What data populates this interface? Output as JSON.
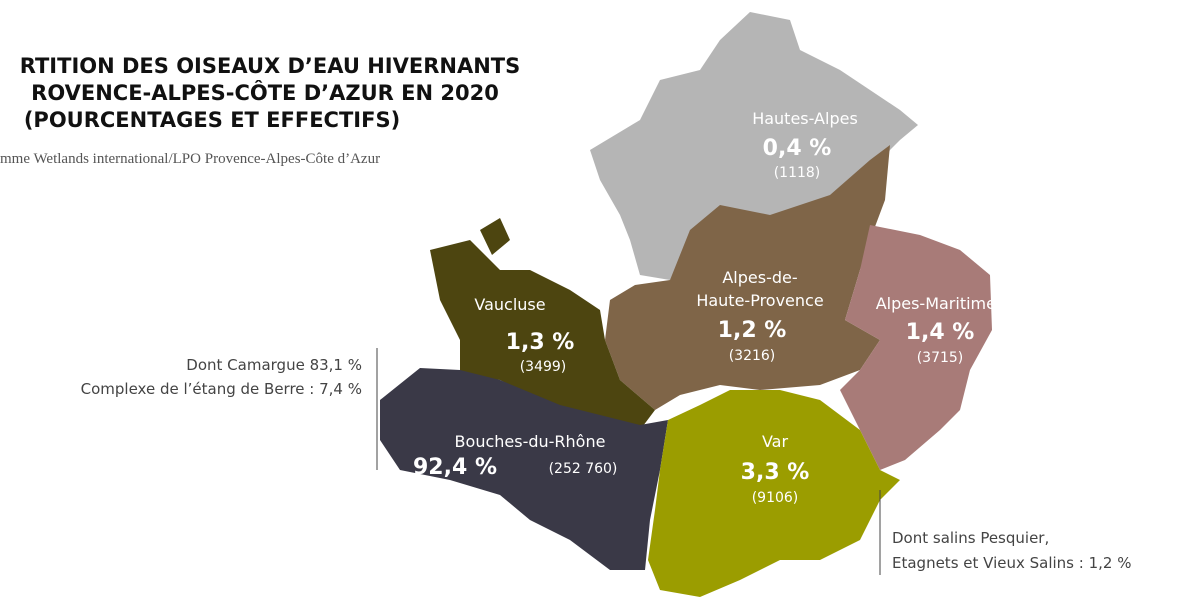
{
  "title": [
    "RTITION DES OISEAUX D’EAU HIVERNANTS",
    "ROVENCE-ALPES-CÔTE D’AZUR EN 2020",
    "(POURCENTAGES ET EFFECTIFS)"
  ],
  "source": "mme Wetlands international/LPO Provence-Alpes-Côte d’Azur",
  "regions": [
    {
      "name": [
        "Hautes-Alpes"
      ],
      "percent": "0,4 %",
      "count": "(1118)"
    },
    {
      "name": [
        "Alpes-de-",
        "Haute-Provence"
      ],
      "percent": "1,2 %",
      "count": "(3216)"
    },
    {
      "name": [
        "Alpes-Maritimes"
      ],
      "percent": "1,4 %",
      "count": "(3715)"
    },
    {
      "name": [
        "Vaucluse"
      ],
      "percent": "1,3 %",
      "count": "(3499)"
    },
    {
      "name": [
        "Bouches-du-Rhône"
      ],
      "percent": "92,4 %",
      "count": "(252 760)"
    },
    {
      "name": [
        "Var"
      ],
      "percent": "3,3 %",
      "count": "(9106)"
    }
  ],
  "notes": [
    [
      "Dont Camargue 83,1 %",
      "Complexe de l’étang de Berre : 7,4 %"
    ],
    [
      "Dont salins Pesquier,",
      "Etagnets et Vieux Salins : 1,2 %"
    ]
  ]
}
